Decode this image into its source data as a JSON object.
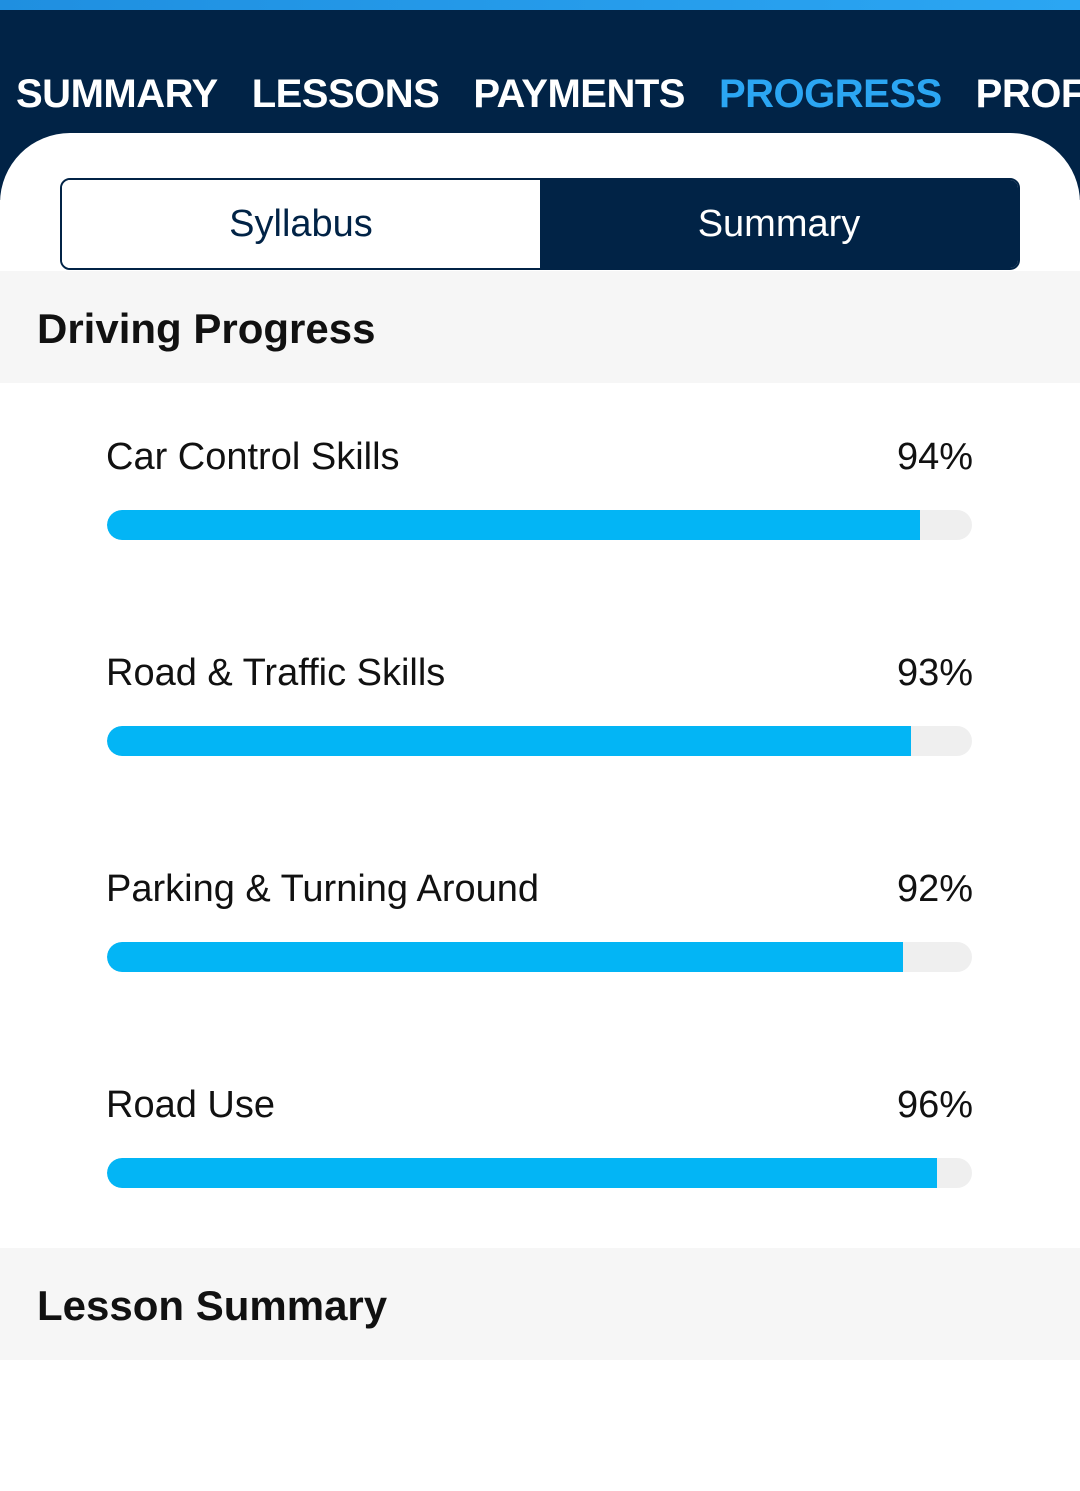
{
  "tabs": {
    "items": [
      "SUMMARY",
      "LESSONS",
      "PAYMENTS",
      "PROGRESS",
      "PROF"
    ],
    "active": 3
  },
  "segments": {
    "items": [
      "Syllabus",
      "Summary"
    ],
    "active": 1
  },
  "driving_progress": {
    "title": "Driving Progress",
    "categories": [
      "Car Control Skills",
      "Road & Traffic Skills",
      "Parking & Turning Around",
      "Road Use"
    ],
    "values": [
      94,
      93,
      92,
      96
    ],
    "value_labels": [
      "94%",
      "93%",
      "92%",
      "96%"
    ],
    "color": "#03b5f5",
    "xlim": [
      0,
      100
    ]
  },
  "lesson_summary": {
    "title": "Lesson Summary"
  }
}
